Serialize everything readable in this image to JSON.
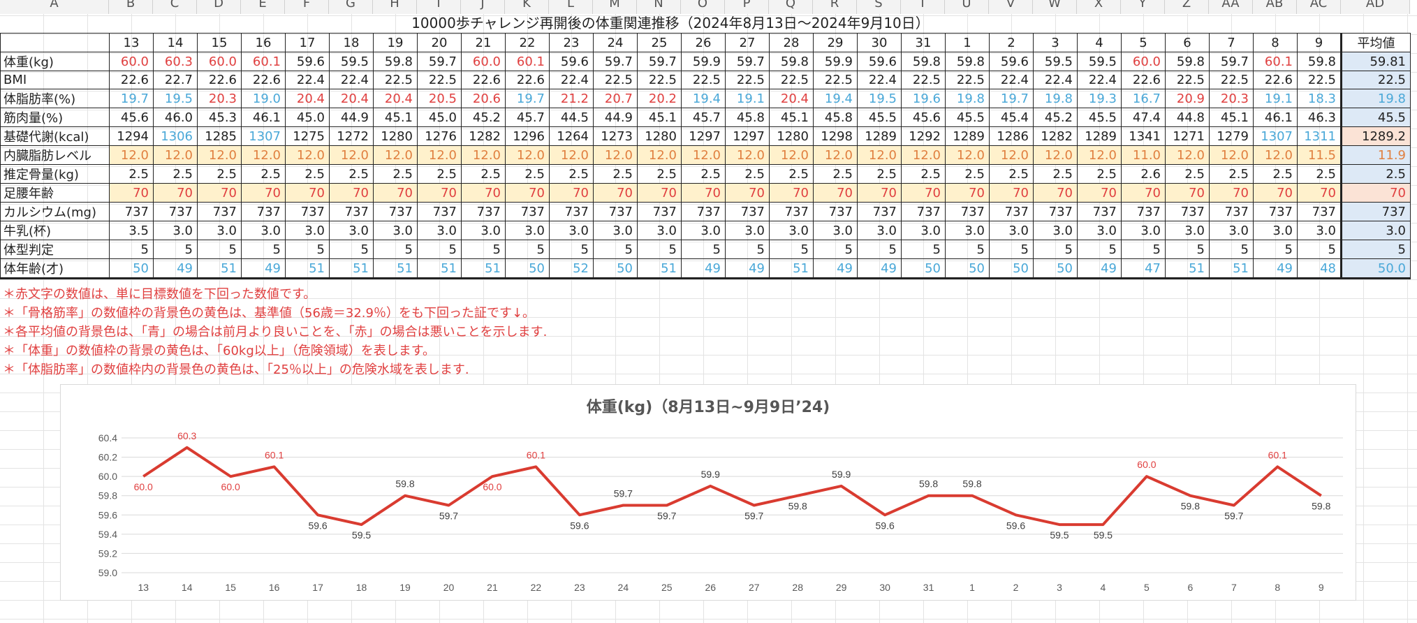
{
  "sheet": {
    "col_letters": [
      "A",
      "B",
      "C",
      "D",
      "E",
      "F",
      "G",
      "H",
      "I",
      "J",
      "K",
      "L",
      "M",
      "N",
      "O",
      "P",
      "Q",
      "R",
      "S",
      "T",
      "U",
      "V",
      "W",
      "X",
      "Y",
      "Z",
      "AA",
      "AB",
      "AC",
      "AD"
    ],
    "title": "10000歩チャレンジ再開後の体重関連推移（2024年8月13日～2024年9月10日）",
    "days": [
      "13",
      "14",
      "15",
      "16",
      "17",
      "18",
      "19",
      "20",
      "21",
      "22",
      "23",
      "24",
      "25",
      "26",
      "27",
      "28",
      "29",
      "30",
      "31",
      "1",
      "2",
      "3",
      "4",
      "5",
      "6",
      "7",
      "8",
      "9"
    ],
    "avg_header": "平均値",
    "rows": [
      {
        "label": "体重(kg)",
        "values": [
          "60.0",
          "60.3",
          "60.0",
          "60.1",
          "59.6",
          "59.5",
          "59.8",
          "59.7",
          "60.0",
          "60.1",
          "59.6",
          "59.7",
          "59.7",
          "59.9",
          "59.7",
          "59.8",
          "59.9",
          "59.6",
          "59.8",
          "59.8",
          "59.6",
          "59.5",
          "59.5",
          "60.0",
          "59.8",
          "59.7",
          "60.1",
          "59.8"
        ],
        "colors": [
          "r",
          "r",
          "r",
          "r",
          "",
          "",
          "",
          "",
          "r",
          "r",
          "",
          "",
          "",
          "",
          "",
          "",
          "",
          "",
          "",
          "",
          "",
          "",
          "",
          "r",
          "",
          "",
          "r",
          ""
        ],
        "bg": "",
        "avg": "59.81",
        "avg_color": "",
        "avg_bg": "blue"
      },
      {
        "label": "BMI",
        "values": [
          "22.6",
          "22.7",
          "22.6",
          "22.6",
          "22.4",
          "22.4",
          "22.5",
          "22.5",
          "22.6",
          "22.6",
          "22.4",
          "22.5",
          "22.5",
          "22.5",
          "22.5",
          "22.5",
          "22.5",
          "22.4",
          "22.5",
          "22.5",
          "22.4",
          "22.4",
          "22.4",
          "22.6",
          "22.5",
          "22.5",
          "22.6",
          "22.5"
        ],
        "colors": [
          "",
          "",
          "",
          "",
          "",
          "",
          "",
          "",
          "",
          "",
          "",
          "",
          "",
          "",
          "",
          "",
          "",
          "",
          "",
          "",
          "",
          "",
          "",
          "",
          "",
          "",
          "",
          ""
        ],
        "bg": "",
        "avg": "22.5",
        "avg_color": "",
        "avg_bg": "blue"
      },
      {
        "label": "体脂肪率(%)",
        "values": [
          "19.7",
          "19.5",
          "20.3",
          "19.0",
          "20.4",
          "20.4",
          "20.4",
          "20.5",
          "20.6",
          "19.7",
          "21.2",
          "20.7",
          "20.2",
          "19.4",
          "19.1",
          "20.4",
          "19.4",
          "19.5",
          "19.6",
          "19.8",
          "19.7",
          "19.8",
          "19.3",
          "16.7",
          "20.9",
          "20.3",
          "19.1",
          "18.3"
        ],
        "colors": [
          "b",
          "b",
          "r",
          "b",
          "r",
          "r",
          "r",
          "r",
          "r",
          "b",
          "r",
          "r",
          "r",
          "b",
          "b",
          "r",
          "b",
          "b",
          "b",
          "b",
          "b",
          "b",
          "b",
          "b",
          "r",
          "r",
          "b",
          "b"
        ],
        "bg": "",
        "avg": "19.8",
        "avg_color": "b",
        "avg_bg": "blue"
      },
      {
        "label": "筋肉量(%)",
        "values": [
          "45.6",
          "46.0",
          "45.3",
          "46.1",
          "45.0",
          "44.9",
          "45.1",
          "45.0",
          "45.2",
          "45.7",
          "44.5",
          "44.9",
          "45.1",
          "45.7",
          "45.8",
          "45.1",
          "45.8",
          "45.5",
          "45.6",
          "45.5",
          "45.4",
          "45.2",
          "45.5",
          "47.4",
          "44.8",
          "45.1",
          "46.1",
          "46.3"
        ],
        "colors": [
          "",
          "",
          "",
          "",
          "",
          "",
          "",
          "",
          "",
          "",
          "",
          "",
          "",
          "",
          "",
          "",
          "",
          "",
          "",
          "",
          "",
          "",
          "",
          "",
          "",
          "",
          "",
          ""
        ],
        "bg": "",
        "avg": "45.5",
        "avg_color": "",
        "avg_bg": "blue"
      },
      {
        "label": "基礎代謝(kcal)",
        "values": [
          "1294",
          "1306",
          "1285",
          "1307",
          "1275",
          "1272",
          "1280",
          "1276",
          "1282",
          "1296",
          "1264",
          "1273",
          "1280",
          "1297",
          "1297",
          "1280",
          "1298",
          "1289",
          "1292",
          "1289",
          "1286",
          "1282",
          "1289",
          "1341",
          "1271",
          "1279",
          "1307",
          "1311"
        ],
        "colors": [
          "",
          "b",
          "",
          "b",
          "",
          "",
          "",
          "",
          "",
          "",
          "",
          "",
          "",
          "",
          "",
          "",
          "",
          "",
          "",
          "",
          "",
          "",
          "",
          "",
          "",
          "",
          "b",
          "b"
        ],
        "bg": "",
        "avg": "1289.2",
        "avg_color": "",
        "avg_bg": "peach"
      },
      {
        "label": "内臓脂肪レベル",
        "values": [
          "12.0",
          "12.0",
          "12.0",
          "12.0",
          "12.0",
          "12.0",
          "12.0",
          "12.0",
          "12.0",
          "12.0",
          "12.0",
          "12.0",
          "12.0",
          "12.0",
          "12.0",
          "12.0",
          "12.0",
          "12.0",
          "12.0",
          "12.0",
          "12.0",
          "12.0",
          "12.0",
          "11.0",
          "12.0",
          "12.0",
          "12.0",
          "11.5"
        ],
        "colors": [
          "o",
          "o",
          "o",
          "o",
          "o",
          "o",
          "o",
          "o",
          "o",
          "o",
          "o",
          "o",
          "o",
          "o",
          "o",
          "o",
          "o",
          "o",
          "o",
          "o",
          "o",
          "o",
          "o",
          "o",
          "o",
          "o",
          "o",
          "o"
        ],
        "bg": "yellow",
        "avg": "11.9",
        "avg_color": "o",
        "avg_bg": "blue"
      },
      {
        "label": "推定骨量(kg)",
        "values": [
          "2.5",
          "2.5",
          "2.5",
          "2.5",
          "2.5",
          "2.5",
          "2.5",
          "2.5",
          "2.5",
          "2.5",
          "2.5",
          "2.5",
          "2.5",
          "2.5",
          "2.5",
          "2.5",
          "2.5",
          "2.5",
          "2.5",
          "2.5",
          "2.5",
          "2.5",
          "2.5",
          "2.6",
          "2.5",
          "2.5",
          "2.5",
          "2.5"
        ],
        "colors": [
          "",
          "",
          "",
          "",
          "",
          "",
          "",
          "",
          "",
          "",
          "",
          "",
          "",
          "",
          "",
          "",
          "",
          "",
          "",
          "",
          "",
          "",
          "",
          "",
          "",
          "",
          "",
          ""
        ],
        "bg": "",
        "avg": "2.5",
        "avg_color": "",
        "avg_bg": "blue"
      },
      {
        "label": "足腰年齢",
        "values": [
          "70",
          "70",
          "70",
          "70",
          "70",
          "70",
          "70",
          "70",
          "70",
          "70",
          "70",
          "70",
          "70",
          "70",
          "70",
          "70",
          "70",
          "70",
          "70",
          "70",
          "70",
          "70",
          "70",
          "70",
          "70",
          "70",
          "70",
          "70"
        ],
        "colors": [
          "r",
          "r",
          "r",
          "r",
          "r",
          "r",
          "r",
          "r",
          "r",
          "r",
          "r",
          "r",
          "r",
          "r",
          "r",
          "r",
          "r",
          "r",
          "r",
          "r",
          "r",
          "r",
          "r",
          "r",
          "r",
          "r",
          "r",
          "r"
        ],
        "bg": "yellow",
        "avg": "70",
        "avg_color": "r",
        "avg_bg": "peach"
      },
      {
        "label": "カルシウム(mg)",
        "values": [
          "737",
          "737",
          "737",
          "737",
          "737",
          "737",
          "737",
          "737",
          "737",
          "737",
          "737",
          "737",
          "737",
          "737",
          "737",
          "737",
          "737",
          "737",
          "737",
          "737",
          "737",
          "737",
          "737",
          "737",
          "737",
          "737",
          "737",
          "737"
        ],
        "colors": [
          "",
          "",
          "",
          "",
          "",
          "",
          "",
          "",
          "",
          "",
          "",
          "",
          "",
          "",
          "",
          "",
          "",
          "",
          "",
          "",
          "",
          "",
          "",
          "",
          "",
          "",
          "",
          ""
        ],
        "bg": "",
        "avg": "737",
        "avg_color": "",
        "avg_bg": "blue"
      },
      {
        "label": "牛乳(杯)",
        "values": [
          "3.5",
          "3.0",
          "3.0",
          "3.0",
          "3.0",
          "3.0",
          "3.0",
          "3.0",
          "3.0",
          "3.0",
          "3.0",
          "3.0",
          "3.0",
          "3.0",
          "3.0",
          "3.0",
          "3.0",
          "3.0",
          "3.0",
          "3.0",
          "3.0",
          "3.0",
          "3.0",
          "3.0",
          "3.0",
          "3.0",
          "3.0",
          "3.0"
        ],
        "colors": [
          "",
          "",
          "",
          "",
          "",
          "",
          "",
          "",
          "",
          "",
          "",
          "",
          "",
          "",
          "",
          "",
          "",
          "",
          "",
          "",
          "",
          "",
          "",
          "",
          "",
          "",
          "",
          ""
        ],
        "bg": "",
        "avg": "3.0",
        "avg_color": "",
        "avg_bg": "blue"
      },
      {
        "label": "体型判定",
        "values": [
          "5",
          "5",
          "5",
          "5",
          "5",
          "5",
          "5",
          "5",
          "5",
          "5",
          "5",
          "5",
          "5",
          "5",
          "5",
          "5",
          "5",
          "5",
          "5",
          "5",
          "5",
          "5",
          "5",
          "5",
          "5",
          "5",
          "5",
          "5"
        ],
        "colors": [
          "",
          "",
          "",
          "",
          "",
          "",
          "",
          "",
          "",
          "",
          "",
          "",
          "",
          "",
          "",
          "",
          "",
          "",
          "",
          "",
          "",
          "",
          "",
          "",
          "",
          "",
          "",
          ""
        ],
        "bg": "",
        "avg": "5",
        "avg_color": "",
        "avg_bg": "blue"
      },
      {
        "label": "体年齢(才)",
        "values": [
          "50",
          "49",
          "51",
          "49",
          "51",
          "51",
          "51",
          "51",
          "51",
          "50",
          "52",
          "50",
          "51",
          "49",
          "49",
          "51",
          "49",
          "49",
          "50",
          "50",
          "50",
          "50",
          "49",
          "47",
          "51",
          "51",
          "49",
          "48"
        ],
        "colors": [
          "b",
          "b",
          "b",
          "b",
          "b",
          "b",
          "b",
          "b",
          "b",
          "b",
          "b",
          "b",
          "b",
          "b",
          "b",
          "b",
          "b",
          "b",
          "b",
          "b",
          "b",
          "b",
          "b",
          "b",
          "b",
          "b",
          "b",
          "b"
        ],
        "bg": "",
        "avg": "50.0",
        "avg_color": "b",
        "avg_bg": "blue"
      }
    ],
    "notes": [
      "＊赤文字の数値は、単に目標数値を下回った数値です。",
      "＊「骨格筋率」の数値枠の背景色の黄色は、基準値（56歳＝32.9％）をも下回った証です↓。",
      "＊各平均値の背景色は、「青」の場合は前月より良いことを、「赤」の場合は悪いことを示します.",
      "＊「体重」の数値枠の背景の黄色は、「60kg以上」（危険領域）を表します。",
      "＊「体脂肪率」の数値枠内の背景色の黄色は、「25％以上」の危険水域を表します."
    ],
    "colors": {
      "red": "#e04040",
      "blue": "#4aa8d8",
      "orange": "#e08040",
      "yellow_bg": "#fff1cc",
      "peach_bg": "#fbe3d6",
      "blue_bg": "#dde9f6",
      "line": "#d93b30"
    }
  },
  "chart_data": {
    "type": "line",
    "title": "体重(kg)（8月13日~9月9日’24)",
    "categories": [
      "13",
      "14",
      "15",
      "16",
      "17",
      "18",
      "19",
      "20",
      "21",
      "22",
      "23",
      "24",
      "25",
      "26",
      "27",
      "28",
      "29",
      "30",
      "31",
      "1",
      "2",
      "3",
      "4",
      "5",
      "6",
      "7",
      "8",
      "9"
    ],
    "values": [
      60.0,
      60.3,
      60.0,
      60.1,
      59.6,
      59.5,
      59.8,
      59.7,
      60.0,
      60.1,
      59.6,
      59.7,
      59.7,
      59.9,
      59.7,
      59.8,
      59.9,
      59.6,
      59.8,
      59.8,
      59.6,
      59.5,
      59.5,
      60.0,
      59.8,
      59.7,
      60.1,
      59.8
    ],
    "data_labels": [
      "60.0",
      "60.3",
      "60.0",
      "60.1",
      "59.6",
      "59.5",
      "59.8",
      "59.7",
      "60.0",
      "60.1",
      "59.6",
      "59.7",
      "59.7",
      "59.9",
      "59.7",
      "59.8",
      "59.9",
      "59.6",
      "59.8",
      "59.8",
      "59.6",
      "59.5",
      "59.5",
      "60.0",
      "59.8",
      "59.7",
      "60.1",
      "59.8"
    ],
    "y_ticks": [
      "59.0",
      "59.2",
      "59.4",
      "59.6",
      "59.8",
      "60.0",
      "60.2",
      "60.4"
    ],
    "ylim": [
      59.0,
      60.4
    ],
    "grid": true,
    "legend": "none",
    "highlight_threshold": 60.0
  }
}
